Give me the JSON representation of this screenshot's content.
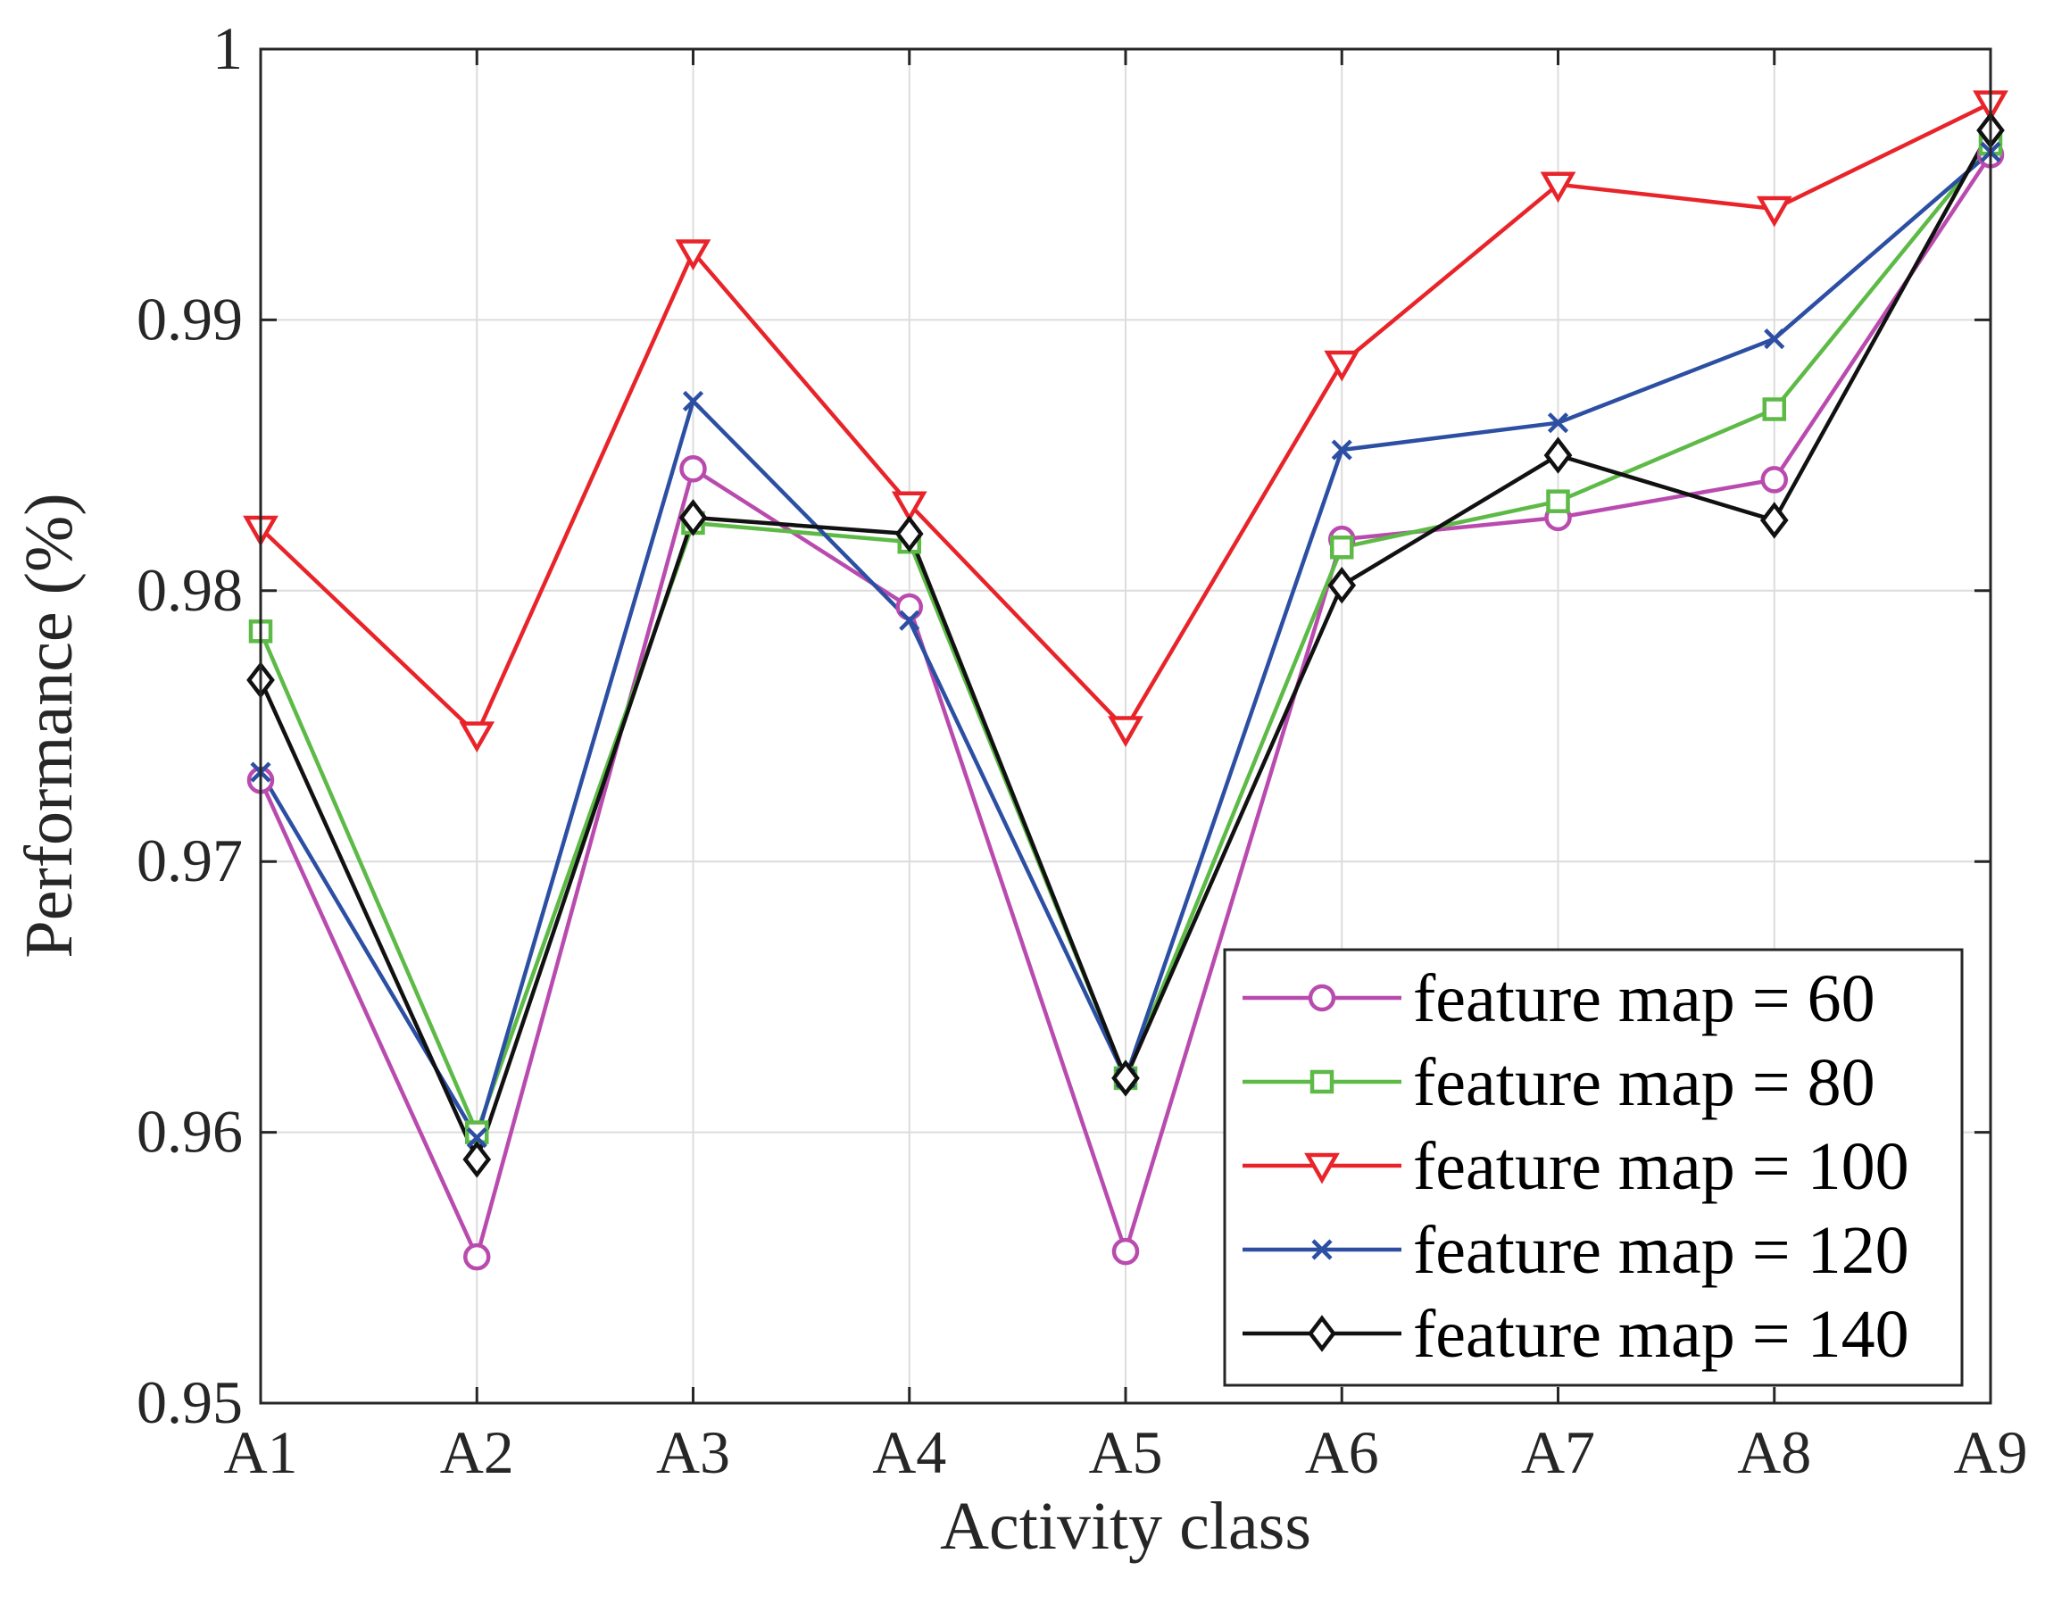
{
  "chart_data": {
    "type": "line",
    "title": "",
    "xlabel": "Activity class",
    "ylabel": "Performance (%)",
    "categories": [
      "A1",
      "A2",
      "A3",
      "A4",
      "A5",
      "A6",
      "A7",
      "A8",
      "A9"
    ],
    "ylim": [
      0.95,
      1
    ],
    "yticks": [
      0.95,
      0.96,
      0.97,
      0.98,
      0.99,
      1
    ],
    "ytick_labels": [
      "0.95",
      "0.96",
      "0.97",
      "0.98",
      "0.99",
      "1"
    ],
    "grid": true,
    "legend_position": "bottom-right",
    "series": [
      {
        "name": "feature map = 60",
        "color": "#B94BAE",
        "marker": "circle",
        "values": [
          0.973,
          0.9554,
          0.9845,
          0.9794,
          0.9556,
          0.9819,
          0.9827,
          0.9841,
          0.9961
        ]
      },
      {
        "name": "feature map = 80",
        "color": "#5DBA46",
        "marker": "square",
        "values": [
          0.9785,
          0.96,
          0.9825,
          0.9818,
          0.962,
          0.9816,
          0.9833,
          0.9867,
          0.9965
        ]
      },
      {
        "name": "feature map = 100",
        "color": "#E8242A",
        "marker": "triangle-down",
        "values": [
          0.9823,
          0.9747,
          0.9925,
          0.9832,
          0.9749,
          0.9884,
          0.995,
          0.9941,
          0.998
        ]
      },
      {
        "name": "feature map = 120",
        "color": "#2C4FA3",
        "marker": "x",
        "values": [
          0.9733,
          0.9598,
          0.987,
          0.9789,
          0.962,
          0.9852,
          0.9862,
          0.9893,
          0.9962
        ]
      },
      {
        "name": "feature map = 140",
        "color": "#111111",
        "marker": "diamond",
        "values": [
          0.9767,
          0.959,
          0.9827,
          0.9821,
          0.962,
          0.9802,
          0.985,
          0.9826,
          0.997
        ]
      }
    ]
  }
}
